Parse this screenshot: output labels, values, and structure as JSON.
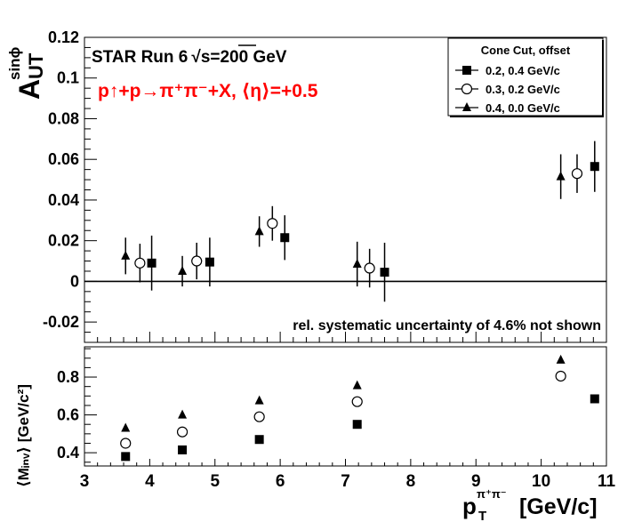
{
  "chart_data": [
    {
      "type": "scatter",
      "panel": "top",
      "title": "STAR Run 6",
      "title_sqrt_label": "s=200 GeV",
      "process_label": "p↑+p→π⁺π⁻+X, ⟨η⟩=+0.5",
      "annotation": "rel. systematic uncertainty of 4.6% not shown",
      "ylabel": "A",
      "ylabel_sup": "sinϕ",
      "ylabel_sub": "UT",
      "xlim": [
        3,
        11
      ],
      "ylim": [
        -0.03,
        0.12
      ],
      "yticks": [
        -0.02,
        0,
        0.02,
        0.04,
        0.06,
        0.08,
        0.1,
        0.12
      ],
      "ytick_labels": [
        "-0.02",
        "0",
        "0.02",
        "0.04",
        "0.06",
        "0.08",
        "0.1",
        "0.12"
      ],
      "zero_line": true,
      "grid": false,
      "legend": {
        "placement": "top-right",
        "title": "Cone Cut,  offset"
      },
      "series": [
        {
          "name": "0.2, 0.4 GeV/c",
          "marker": "square-filled",
          "x": [
            4.03,
            4.92,
            6.07,
            7.6,
            10.82
          ],
          "y": [
            0.009,
            0.0095,
            0.0215,
            0.0045,
            0.0565
          ],
          "err": [
            0.0135,
            0.012,
            0.011,
            0.0145,
            0.0125
          ]
        },
        {
          "name": "0.3, 0.2 GeV/c",
          "marker": "circle-open",
          "x": [
            3.85,
            4.72,
            5.88,
            7.37,
            10.55
          ],
          "y": [
            0.009,
            0.01,
            0.0285,
            0.0065,
            0.053
          ],
          "err": [
            0.0095,
            0.009,
            0.0085,
            0.0095,
            0.0095
          ]
        },
        {
          "name": "0.4, 0.0 GeV/c",
          "marker": "triangle-filled",
          "x": [
            3.63,
            4.5,
            5.68,
            7.18,
            10.3
          ],
          "y": [
            0.0125,
            0.005,
            0.0245,
            0.0085,
            0.0515
          ],
          "err": [
            0.009,
            0.0075,
            0.0075,
            0.011,
            0.011
          ]
        }
      ]
    },
    {
      "type": "scatter",
      "panel": "bottom",
      "ylabel": "⟨Mᵢₙᵥ⟩ [GeV/c²]",
      "xlabel": "p",
      "xlabel_sub": "T",
      "xlabel_sup": "π⁺π⁻",
      "xlabel_unit": "[GeV/c]",
      "xlim": [
        3,
        11
      ],
      "ylim": [
        0.33,
        0.96
      ],
      "xticks": [
        3,
        4,
        5,
        6,
        7,
        8,
        9,
        10,
        11
      ],
      "xtick_labels": [
        "3",
        "4",
        "5",
        "6",
        "7",
        "8",
        "9",
        "10",
        "11"
      ],
      "yticks": [
        0.4,
        0.6,
        0.8
      ],
      "ytick_labels": [
        "0.4",
        "0.6",
        "0.8"
      ],
      "grid": false,
      "series": [
        {
          "name": "0.2, 0.4 GeV/c",
          "marker": "square-filled",
          "x": [
            3.63,
            4.5,
            5.68,
            7.18,
            10.82
          ],
          "y": [
            0.38,
            0.415,
            0.47,
            0.55,
            0.685
          ]
        },
        {
          "name": "0.3, 0.2 GeV/c",
          "marker": "circle-open",
          "x": [
            3.63,
            4.5,
            5.68,
            7.18,
            10.3
          ],
          "y": [
            0.45,
            0.51,
            0.59,
            0.67,
            0.805
          ]
        },
        {
          "name": "0.4, 0.0 GeV/c",
          "marker": "triangle-filled",
          "x": [
            3.63,
            4.5,
            5.68,
            7.18,
            10.3
          ],
          "y": [
            0.53,
            0.6,
            0.675,
            0.755,
            0.89
          ]
        }
      ]
    }
  ]
}
